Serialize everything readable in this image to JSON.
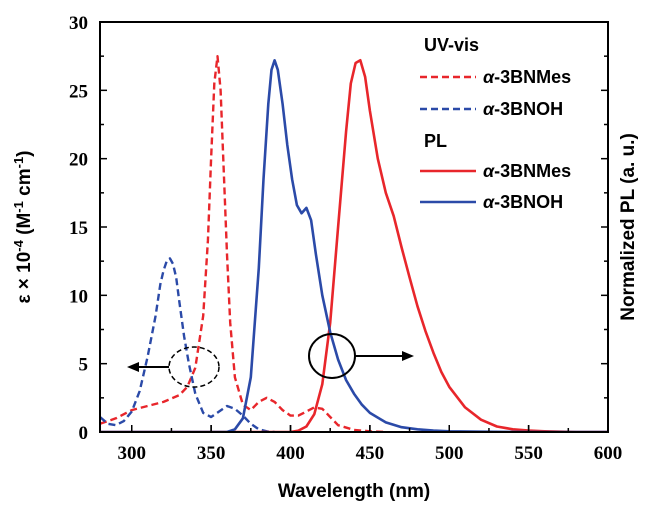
{
  "chart_data": {
    "type": "line",
    "xlabel": "Wavelength (nm)",
    "ylabel": "ε × 10-4 (M-1 cm-1)",
    "ylabel_parts": {
      "base": "ε × 10",
      "exp1": "-4",
      "mid": " (M",
      "exp2": "-1",
      "mid2": " cm",
      "exp3": "-1",
      "end": ")"
    },
    "y2label": "Normalized PL (a. u.)",
    "xlim": [
      280,
      600
    ],
    "ylim": [
      0,
      30
    ],
    "xticks": [
      300,
      350,
      400,
      450,
      500,
      550,
      600
    ],
    "yticks": [
      0,
      5,
      10,
      15,
      20,
      25,
      30
    ],
    "legend": {
      "group1": "UV-vis",
      "group2": "PL",
      "entries": [
        {
          "prefix": "α",
          "name": "-3BNMes",
          "color": "#e8262b",
          "dash": true
        },
        {
          "prefix": "α",
          "name": "-3BNOH",
          "color": "#2b4aa8",
          "dash": true
        },
        {
          "prefix": "α",
          "name": "-3BNMes",
          "color": "#e8262b",
          "dash": false
        },
        {
          "prefix": "α",
          "name": "-3BNOH",
          "color": "#2b4aa8",
          "dash": false
        }
      ]
    },
    "series": [
      {
        "name": "α-3BNMes",
        "group": "UV-vis",
        "color": "#e8262b",
        "style": "dashed",
        "x": [
          280,
          290,
          300,
          310,
          320,
          330,
          335,
          340,
          345,
          348,
          350,
          352,
          354,
          356,
          358,
          360,
          362,
          365,
          370,
          375,
          380,
          385,
          390,
          395,
          400,
          405,
          410,
          415,
          420,
          425,
          430,
          440,
          450,
          460
        ],
        "y": [
          0.6,
          1.0,
          1.6,
          1.9,
          2.2,
          2.7,
          3.3,
          4.7,
          8.5,
          14.0,
          20.0,
          25.5,
          27.5,
          25.0,
          19.0,
          13.0,
          8.0,
          4.0,
          2.0,
          1.6,
          2.2,
          2.5,
          2.2,
          1.6,
          1.2,
          1.2,
          1.5,
          1.8,
          1.7,
          1.1,
          0.5,
          0.15,
          0.05,
          0.0
        ]
      },
      {
        "name": "α-3BNOH",
        "group": "UV-vis",
        "color": "#2b4aa8",
        "style": "dashed",
        "x": [
          280,
          285,
          290,
          295,
          300,
          305,
          310,
          315,
          318,
          320,
          322,
          324,
          326,
          328,
          330,
          333,
          336,
          340,
          345,
          350,
          355,
          360,
          365,
          370,
          375,
          380,
          385,
          390
        ],
        "y": [
          1.1,
          0.6,
          0.5,
          0.8,
          1.5,
          3.0,
          5.5,
          8.5,
          10.8,
          11.8,
          12.5,
          12.7,
          12.3,
          11.3,
          9.5,
          7.0,
          5.0,
          2.8,
          1.4,
          1.1,
          1.5,
          1.9,
          1.7,
          1.2,
          0.6,
          0.2,
          0.05,
          0.0
        ]
      },
      {
        "name": "α-3BNMes",
        "group": "PL",
        "color": "#e8262b",
        "style": "solid",
        "x": [
          280,
          400,
          405,
          410,
          415,
          420,
          425,
          430,
          435,
          438,
          441,
          444,
          447,
          450,
          455,
          460,
          465,
          470,
          475,
          480,
          485,
          490,
          495,
          500,
          510,
          520,
          530,
          540,
          550,
          560,
          570,
          580,
          600
        ],
        "y": [
          0.0,
          0.0,
          0.1,
          0.4,
          1.3,
          3.5,
          8.0,
          15.0,
          22.0,
          25.5,
          27.0,
          27.2,
          26.0,
          23.5,
          20.0,
          17.5,
          15.8,
          13.5,
          11.3,
          9.2,
          7.4,
          5.8,
          4.4,
          3.3,
          1.8,
          0.9,
          0.4,
          0.2,
          0.1,
          0.05,
          0.02,
          0.0,
          0.0
        ]
      },
      {
        "name": "α-3BNOH",
        "group": "PL",
        "color": "#2b4aa8",
        "style": "solid",
        "x": [
          280,
          360,
          365,
          370,
          375,
          380,
          383,
          386,
          388,
          390,
          392,
          395,
          398,
          401,
          404,
          407,
          410,
          413,
          416,
          420,
          425,
          430,
          435,
          440,
          445,
          450,
          460,
          470,
          480,
          490,
          500,
          520,
          540,
          560,
          600
        ],
        "y": [
          0.0,
          0.0,
          0.2,
          1.0,
          4.0,
          12.0,
          18.5,
          24.0,
          26.5,
          27.2,
          26.5,
          24.0,
          21.0,
          18.5,
          16.6,
          16.0,
          16.4,
          15.5,
          13.0,
          10.0,
          7.3,
          5.3,
          3.8,
          2.8,
          2.0,
          1.4,
          0.7,
          0.35,
          0.2,
          0.1,
          0.05,
          0.02,
          0.01,
          0.0,
          0.0
        ]
      }
    ]
  }
}
